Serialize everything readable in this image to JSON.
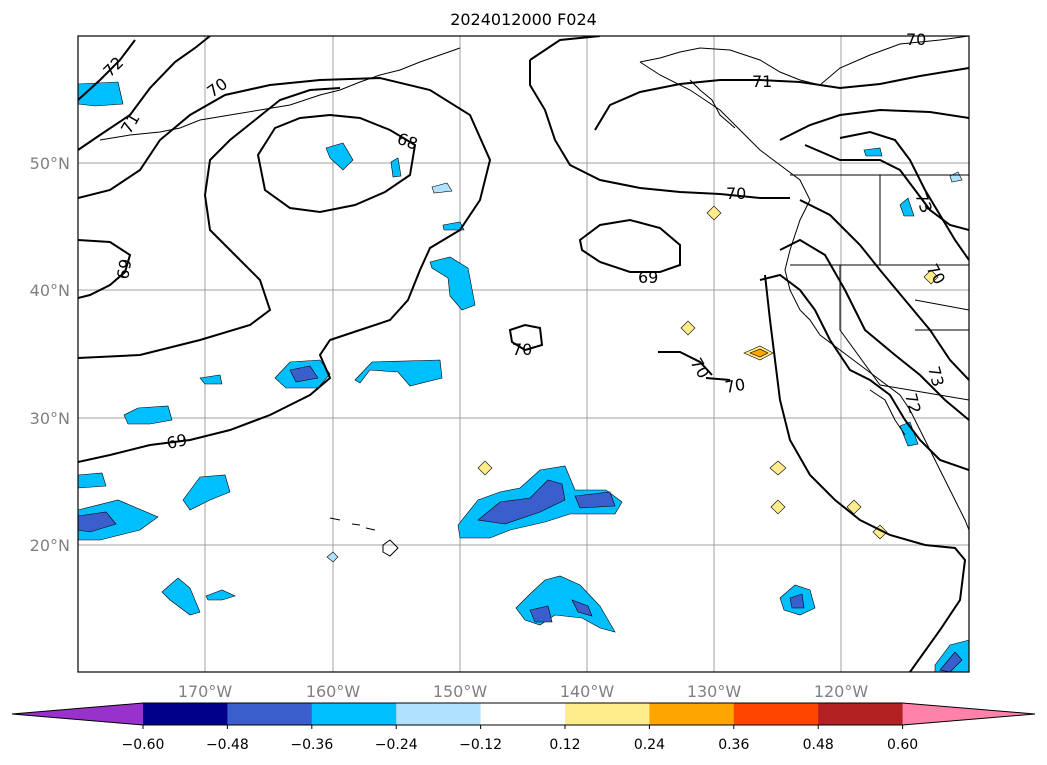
{
  "title": "2024012000 F024",
  "map": {
    "lon_labels": [
      "170°W",
      "160°W",
      "150°W",
      "140°W",
      "130°W",
      "120°W"
    ],
    "lat_labels": [
      "50°N",
      "40°N",
      "30°N",
      "20°N"
    ],
    "gridlines": true
  },
  "contour_labels": [
    "72",
    "70",
    "71",
    "68",
    "69",
    "69",
    "70",
    "71",
    "70",
    "69",
    "70",
    "70",
    "70",
    "73",
    "72",
    "73",
    "70"
  ],
  "colorbar": {
    "ticks": [
      "−0.60",
      "−0.48",
      "−0.36",
      "−0.24",
      "−0.12",
      "0.12",
      "0.24",
      "0.36",
      "0.48",
      "0.60"
    ],
    "colors": [
      "#9932cc",
      "#00008b",
      "#3a5fcd",
      "#00bfff",
      "#b0e2ff",
      "#ffffff",
      "#ffec8b",
      "#ffa500",
      "#ff4500",
      "#b22222",
      "#ff82ab"
    ]
  }
}
